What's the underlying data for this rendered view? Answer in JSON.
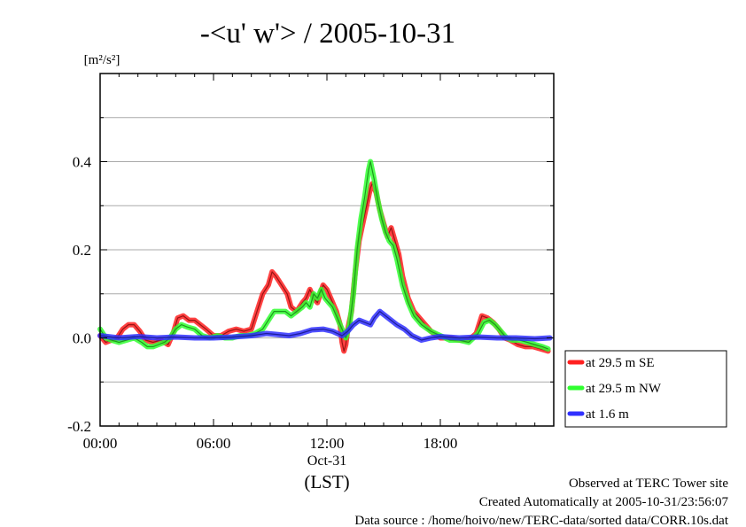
{
  "chart_data": {
    "type": "line",
    "title": "-<u' w'> / 2005-10-31",
    "ylabel_unit": "[m²/s²]",
    "xlabel_date": "Oct-31",
    "xlabel_zone": "(LST)",
    "xlim": [
      0,
      24
    ],
    "ylim": [
      -0.2,
      0.6
    ],
    "grid": true,
    "legend_position": "right-bottom outside",
    "x_ticks": [
      {
        "value": 0,
        "label": "00:00"
      },
      {
        "value": 6,
        "label": "06:00"
      },
      {
        "value": 12,
        "label": "12:00"
      },
      {
        "value": 18,
        "label": "18:00"
      }
    ],
    "y_ticks": [
      {
        "value": -0.2,
        "label": "-0.2"
      },
      {
        "value": 0.0,
        "label": "0.0"
      },
      {
        "value": 0.2,
        "label": "0.2"
      },
      {
        "value": 0.4,
        "label": "0.4"
      }
    ],
    "series": [
      {
        "name": "at 29.5 m SE",
        "color": "#ff2020",
        "points": [
          [
            0,
            0.005
          ],
          [
            0.3,
            -0.01
          ],
          [
            0.6,
            -0.005
          ],
          [
            0.9,
            0.0
          ],
          [
            1.2,
            0.02
          ],
          [
            1.5,
            0.03
          ],
          [
            1.8,
            0.03
          ],
          [
            2.1,
            0.015
          ],
          [
            2.4,
            -0.005
          ],
          [
            2.8,
            -0.01
          ],
          [
            3.2,
            -0.005
          ],
          [
            3.6,
            -0.015
          ],
          [
            3.9,
            0.015
          ],
          [
            4.1,
            0.045
          ],
          [
            4.4,
            0.05
          ],
          [
            4.7,
            0.04
          ],
          [
            5.0,
            0.04
          ],
          [
            5.3,
            0.03
          ],
          [
            5.6,
            0.02
          ],
          [
            6.0,
            0.005
          ],
          [
            6.4,
            0.005
          ],
          [
            6.8,
            0.015
          ],
          [
            7.2,
            0.02
          ],
          [
            7.6,
            0.015
          ],
          [
            8.0,
            0.02
          ],
          [
            8.3,
            0.06
          ],
          [
            8.6,
            0.1
          ],
          [
            8.9,
            0.12
          ],
          [
            9.1,
            0.15
          ],
          [
            9.3,
            0.14
          ],
          [
            9.6,
            0.12
          ],
          [
            9.9,
            0.1
          ],
          [
            10.1,
            0.07
          ],
          [
            10.4,
            0.06
          ],
          [
            10.7,
            0.08
          ],
          [
            10.9,
            0.09
          ],
          [
            11.1,
            0.11
          ],
          [
            11.3,
            0.09
          ],
          [
            11.5,
            0.08
          ],
          [
            11.8,
            0.12
          ],
          [
            12.0,
            0.11
          ],
          [
            12.2,
            0.09
          ],
          [
            12.5,
            0.06
          ],
          [
            12.7,
            0.03
          ],
          [
            12.8,
            -0.01
          ],
          [
            12.9,
            -0.03
          ],
          [
            13.0,
            -0.015
          ],
          [
            13.1,
            0.02
          ],
          [
            13.3,
            0.06
          ],
          [
            13.5,
            0.15
          ],
          [
            13.7,
            0.22
          ],
          [
            13.9,
            0.26
          ],
          [
            14.1,
            0.3
          ],
          [
            14.3,
            0.34
          ],
          [
            14.4,
            0.35
          ],
          [
            14.6,
            0.33
          ],
          [
            14.8,
            0.29
          ],
          [
            15.0,
            0.26
          ],
          [
            15.2,
            0.23
          ],
          [
            15.4,
            0.25
          ],
          [
            15.6,
            0.22
          ],
          [
            15.8,
            0.19
          ],
          [
            16.0,
            0.14
          ],
          [
            16.3,
            0.09
          ],
          [
            16.6,
            0.06
          ],
          [
            17.0,
            0.04
          ],
          [
            17.5,
            0.015
          ],
          [
            18.0,
            0.0
          ],
          [
            18.5,
            0.0
          ],
          [
            19.0,
            -0.005
          ],
          [
            19.5,
            -0.005
          ],
          [
            19.9,
            0.01
          ],
          [
            20.2,
            0.05
          ],
          [
            20.5,
            0.045
          ],
          [
            20.8,
            0.035
          ],
          [
            21.1,
            0.02
          ],
          [
            21.4,
            0.0
          ],
          [
            21.7,
            -0.005
          ],
          [
            22.1,
            -0.015
          ],
          [
            22.5,
            -0.02
          ],
          [
            22.9,
            -0.02
          ],
          [
            23.3,
            -0.025
          ],
          [
            23.7,
            -0.03
          ]
        ]
      },
      {
        "name": "at 29.5 m NW",
        "color": "#30ff30",
        "points": [
          [
            0,
            0.02
          ],
          [
            0.3,
            0.0
          ],
          [
            0.6,
            -0.005
          ],
          [
            1.0,
            -0.01
          ],
          [
            1.4,
            -0.005
          ],
          [
            1.8,
            0.0
          ],
          [
            2.2,
            -0.01
          ],
          [
            2.5,
            -0.02
          ],
          [
            2.8,
            -0.02
          ],
          [
            3.1,
            -0.015
          ],
          [
            3.4,
            -0.01
          ],
          [
            3.7,
            0.0
          ],
          [
            4.0,
            0.02
          ],
          [
            4.3,
            0.03
          ],
          [
            4.6,
            0.025
          ],
          [
            5.0,
            0.02
          ],
          [
            5.4,
            0.005
          ],
          [
            5.8,
            0.0
          ],
          [
            6.2,
            0.005
          ],
          [
            6.6,
            0.0
          ],
          [
            7.0,
            0.0
          ],
          [
            7.4,
            0.005
          ],
          [
            7.8,
            0.005
          ],
          [
            8.2,
            0.01
          ],
          [
            8.6,
            0.02
          ],
          [
            8.9,
            0.04
          ],
          [
            9.2,
            0.06
          ],
          [
            9.5,
            0.06
          ],
          [
            9.8,
            0.06
          ],
          [
            10.1,
            0.05
          ],
          [
            10.4,
            0.06
          ],
          [
            10.7,
            0.07
          ],
          [
            10.9,
            0.08
          ],
          [
            11.1,
            0.07
          ],
          [
            11.3,
            0.1
          ],
          [
            11.5,
            0.09
          ],
          [
            11.7,
            0.11
          ],
          [
            11.9,
            0.09
          ],
          [
            12.1,
            0.08
          ],
          [
            12.3,
            0.07
          ],
          [
            12.5,
            0.05
          ],
          [
            12.7,
            0.03
          ],
          [
            12.9,
            0.01
          ],
          [
            13.0,
            0.0
          ],
          [
            13.2,
            0.03
          ],
          [
            13.4,
            0.1
          ],
          [
            13.6,
            0.2
          ],
          [
            13.8,
            0.27
          ],
          [
            14.0,
            0.32
          ],
          [
            14.2,
            0.38
          ],
          [
            14.3,
            0.4
          ],
          [
            14.5,
            0.36
          ],
          [
            14.7,
            0.31
          ],
          [
            14.9,
            0.27
          ],
          [
            15.1,
            0.24
          ],
          [
            15.3,
            0.22
          ],
          [
            15.5,
            0.21
          ],
          [
            15.7,
            0.18
          ],
          [
            16.0,
            0.12
          ],
          [
            16.3,
            0.08
          ],
          [
            16.6,
            0.05
          ],
          [
            17.0,
            0.03
          ],
          [
            17.5,
            0.015
          ],
          [
            18.0,
            0.005
          ],
          [
            18.5,
            -0.005
          ],
          [
            19.0,
            -0.005
          ],
          [
            19.5,
            -0.01
          ],
          [
            20.0,
            0.01
          ],
          [
            20.3,
            0.035
          ],
          [
            20.6,
            0.04
          ],
          [
            20.9,
            0.03
          ],
          [
            21.2,
            0.015
          ],
          [
            21.5,
            0.0
          ],
          [
            21.8,
            -0.005
          ],
          [
            22.2,
            -0.005
          ],
          [
            22.6,
            -0.01
          ],
          [
            23.0,
            -0.015
          ],
          [
            23.4,
            -0.02
          ],
          [
            23.7,
            -0.025
          ]
        ]
      },
      {
        "name": "at 1.6 m",
        "color": "#3030ff",
        "points": [
          [
            0,
            0.005
          ],
          [
            1,
            0.0
          ],
          [
            2,
            0.003
          ],
          [
            3,
            0.0
          ],
          [
            4,
            0.002
          ],
          [
            5,
            0.0
          ],
          [
            6,
            0.0
          ],
          [
            7,
            0.002
          ],
          [
            8,
            0.005
          ],
          [
            8.8,
            0.01
          ],
          [
            9.3,
            0.008
          ],
          [
            10,
            0.005
          ],
          [
            10.6,
            0.01
          ],
          [
            11.2,
            0.018
          ],
          [
            11.8,
            0.02
          ],
          [
            12.3,
            0.015
          ],
          [
            12.8,
            0.005
          ],
          [
            13.1,
            0.015
          ],
          [
            13.4,
            0.03
          ],
          [
            13.7,
            0.04
          ],
          [
            14.0,
            0.035
          ],
          [
            14.3,
            0.03
          ],
          [
            14.5,
            0.045
          ],
          [
            14.8,
            0.06
          ],
          [
            15.1,
            0.05
          ],
          [
            15.4,
            0.04
          ],
          [
            15.7,
            0.03
          ],
          [
            16.1,
            0.02
          ],
          [
            16.5,
            0.005
          ],
          [
            17.0,
            -0.005
          ],
          [
            17.5,
            0.0
          ],
          [
            18.0,
            0.003
          ],
          [
            19.0,
            0.0
          ],
          [
            20.0,
            0.002
          ],
          [
            21.0,
            0.0
          ],
          [
            22.0,
            0.0
          ],
          [
            23.0,
            -0.002
          ],
          [
            23.8,
            0.0
          ]
        ]
      }
    ]
  },
  "footer": {
    "line1": "Observed at TERC Tower site",
    "line2": "Created Automatically at 2005-10-31/23:56:07",
    "line3": "Data source : /home/hoivo/new/TERC-data/sorted  data/CORR.10s.dat"
  }
}
